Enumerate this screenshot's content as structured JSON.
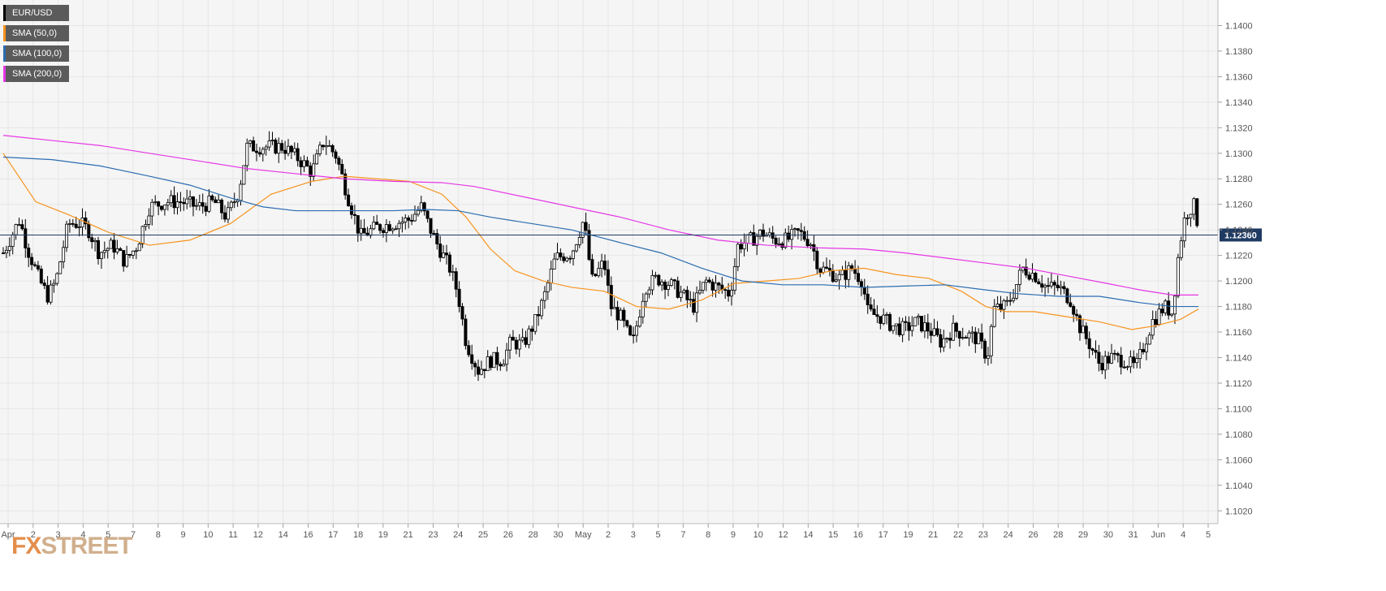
{
  "chart_data": {
    "type": "candlestick",
    "symbol": "EUR/USD",
    "current_price": "1.12360",
    "y_axis_labels": [
      "1.1400",
      "1.1380",
      "1.1360",
      "1.1340",
      "1.1320",
      "1.1300",
      "1.1280",
      "1.1260",
      "1.1240",
      "1.1220",
      "1.1200",
      "1.1180",
      "1.1160",
      "1.1140",
      "1.1120",
      "1.1100",
      "1.1080",
      "1.1060",
      "1.1040",
      "1.1020"
    ],
    "ylim": [
      1.101,
      1.142
    ],
    "x_axis_labels": [
      "Apr",
      "2",
      "3",
      "4",
      "5",
      "7",
      "8",
      "9",
      "10",
      "11",
      "12",
      "14",
      "16",
      "17",
      "18",
      "19",
      "21",
      "23",
      "24",
      "25",
      "26",
      "28",
      "30",
      "May",
      "2",
      "3",
      "5",
      "7",
      "8",
      "9",
      "10",
      "12",
      "14",
      "15",
      "16",
      "17",
      "19",
      "21",
      "22",
      "23",
      "24",
      "26",
      "28",
      "29",
      "30",
      "31",
      "Jun",
      "4",
      "5"
    ],
    "grid": true,
    "legend": [
      {
        "label": "EUR/USD",
        "color": "#000000"
      },
      {
        "label": "SMA (50,0)",
        "color": "#f7931e"
      },
      {
        "label": "SMA (100,0)",
        "color": "#2b6cb0"
      },
      {
        "label": "SMA (200,0)",
        "color": "#e637e6"
      }
    ],
    "price_path": [
      [
        0,
        1.1222
      ],
      [
        20,
        1.1248
      ],
      [
        30,
        1.1225
      ],
      [
        45,
        1.12
      ],
      [
        55,
        1.1188
      ],
      [
        65,
        1.12
      ],
      [
        80,
        1.1245
      ],
      [
        95,
        1.1245
      ],
      [
        105,
        1.124
      ],
      [
        118,
        1.1222
      ],
      [
        135,
        1.1228
      ],
      [
        150,
        1.1215
      ],
      [
        165,
        1.1228
      ],
      [
        180,
        1.1258
      ],
      [
        200,
        1.1262
      ],
      [
        220,
        1.1262
      ],
      [
        240,
        1.1258
      ],
      [
        260,
        1.1262
      ],
      [
        275,
        1.125
      ],
      [
        290,
        1.127
      ],
      [
        300,
        1.1305
      ],
      [
        320,
        1.1305
      ],
      [
        345,
        1.1305
      ],
      [
        365,
        1.1295
      ],
      [
        380,
        1.1285
      ],
      [
        395,
        1.131
      ],
      [
        410,
        1.1298
      ],
      [
        425,
        1.1265
      ],
      [
        440,
        1.1235
      ],
      [
        460,
        1.1242
      ],
      [
        480,
        1.1245
      ],
      [
        500,
        1.1248
      ],
      [
        515,
        1.1258
      ],
      [
        525,
        1.1242
      ],
      [
        535,
        1.1228
      ],
      [
        550,
        1.121
      ],
      [
        560,
        1.119
      ],
      [
        570,
        1.1152
      ],
      [
        585,
        1.113
      ],
      [
        600,
        1.1138
      ],
      [
        615,
        1.1138
      ],
      [
        625,
        1.1152
      ],
      [
        640,
        1.115
      ],
      [
        655,
        1.1168
      ],
      [
        665,
        1.1185
      ],
      [
        680,
        1.1218
      ],
      [
        700,
        1.1222
      ],
      [
        715,
        1.1248
      ],
      [
        725,
        1.12
      ],
      [
        740,
        1.1215
      ],
      [
        748,
        1.118
      ],
      [
        760,
        1.1172
      ],
      [
        775,
        1.115
      ],
      [
        790,
        1.1195
      ],
      [
        805,
        1.1202
      ],
      [
        820,
        1.1198
      ],
      [
        835,
        1.119
      ],
      [
        850,
        1.118
      ],
      [
        865,
        1.12
      ],
      [
        880,
        1.1195
      ],
      [
        895,
        1.119
      ],
      [
        905,
        1.1228
      ],
      [
        920,
        1.1232
      ],
      [
        935,
        1.1238
      ],
      [
        950,
        1.1232
      ],
      [
        965,
        1.1232
      ],
      [
        980,
        1.1238
      ],
      [
        995,
        1.123
      ],
      [
        1005,
        1.121
      ],
      [
        1015,
        1.1208
      ],
      [
        1030,
        1.1202
      ],
      [
        1045,
        1.121
      ],
      [
        1058,
        1.12
      ],
      [
        1065,
        1.1175
      ],
      [
        1080,
        1.1172
      ],
      [
        1095,
        1.1165
      ],
      [
        1110,
        1.1162
      ],
      [
        1125,
        1.1168
      ],
      [
        1140,
        1.1162
      ],
      [
        1155,
        1.1152
      ],
      [
        1170,
        1.1162
      ],
      [
        1185,
        1.1158
      ],
      [
        1200,
        1.1155
      ],
      [
        1212,
        1.114
      ],
      [
        1220,
        1.1178
      ],
      [
        1235,
        1.118
      ],
      [
        1245,
        1.1192
      ],
      [
        1255,
        1.121
      ],
      [
        1270,
        1.1205
      ],
      [
        1285,
        1.1195
      ],
      [
        1300,
        1.1195
      ],
      [
        1315,
        1.1185
      ],
      [
        1325,
        1.1165
      ],
      [
        1340,
        1.1148
      ],
      [
        1350,
        1.1135
      ],
      [
        1365,
        1.114
      ],
      [
        1380,
        1.1138
      ],
      [
        1395,
        1.1132
      ],
      [
        1405,
        1.115
      ],
      [
        1415,
        1.1168
      ],
      [
        1430,
        1.118
      ],
      [
        1440,
        1.1175
      ],
      [
        1448,
        1.1225
      ],
      [
        1456,
        1.1252
      ],
      [
        1466,
        1.126
      ],
      [
        1474,
        1.1236
      ]
    ],
    "sma_50": [
      [
        0,
        1.13
      ],
      [
        40,
        1.1262
      ],
      [
        80,
        1.1252
      ],
      [
        130,
        1.1238
      ],
      [
        180,
        1.1228
      ],
      [
        230,
        1.1232
      ],
      [
        280,
        1.1245
      ],
      [
        330,
        1.1268
      ],
      [
        380,
        1.1278
      ],
      [
        420,
        1.1282
      ],
      [
        460,
        1.128
      ],
      [
        500,
        1.1278
      ],
      [
        540,
        1.1268
      ],
      [
        570,
        1.125
      ],
      [
        600,
        1.1225
      ],
      [
        630,
        1.1208
      ],
      [
        665,
        1.12
      ],
      [
        700,
        1.1195
      ],
      [
        740,
        1.1192
      ],
      [
        780,
        1.118
      ],
      [
        820,
        1.1178
      ],
      [
        860,
        1.1185
      ],
      [
        900,
        1.1198
      ],
      [
        940,
        1.12
      ],
      [
        980,
        1.1202
      ],
      [
        1020,
        1.1208
      ],
      [
        1060,
        1.121
      ],
      [
        1100,
        1.1205
      ],
      [
        1140,
        1.1202
      ],
      [
        1180,
        1.1192
      ],
      [
        1210,
        1.118
      ],
      [
        1235,
        1.1176
      ],
      [
        1270,
        1.1176
      ],
      [
        1310,
        1.1172
      ],
      [
        1350,
        1.1168
      ],
      [
        1390,
        1.1162
      ],
      [
        1420,
        1.1165
      ],
      [
        1450,
        1.117
      ],
      [
        1472,
        1.1178
      ]
    ],
    "sma_100": [
      [
        0,
        1.1297
      ],
      [
        60,
        1.1295
      ],
      [
        120,
        1.129
      ],
      [
        180,
        1.1282
      ],
      [
        230,
        1.1275
      ],
      [
        280,
        1.1265
      ],
      [
        320,
        1.1258
      ],
      [
        360,
        1.1255
      ],
      [
        420,
        1.1255
      ],
      [
        480,
        1.1255
      ],
      [
        520,
        1.1256
      ],
      [
        560,
        1.1255
      ],
      [
        600,
        1.125
      ],
      [
        650,
        1.1245
      ],
      [
        700,
        1.124
      ],
      [
        760,
        1.123
      ],
      [
        810,
        1.1222
      ],
      [
        860,
        1.121
      ],
      [
        910,
        1.12
      ],
      [
        960,
        1.1197
      ],
      [
        1010,
        1.1197
      ],
      [
        1060,
        1.1195
      ],
      [
        1110,
        1.1196
      ],
      [
        1160,
        1.1197
      ],
      [
        1210,
        1.1193
      ],
      [
        1250,
        1.119
      ],
      [
        1300,
        1.1188
      ],
      [
        1350,
        1.1188
      ],
      [
        1400,
        1.1183
      ],
      [
        1440,
        1.118
      ],
      [
        1472,
        1.118
      ]
    ],
    "sma_200": [
      [
        0,
        1.1314
      ],
      [
        60,
        1.131
      ],
      [
        120,
        1.1306
      ],
      [
        180,
        1.13
      ],
      [
        240,
        1.1294
      ],
      [
        300,
        1.1288
      ],
      [
        360,
        1.1284
      ],
      [
        420,
        1.128
      ],
      [
        480,
        1.1278
      ],
      [
        540,
        1.1277
      ],
      [
        580,
        1.1274
      ],
      [
        640,
        1.1266
      ],
      [
        700,
        1.1258
      ],
      [
        760,
        1.125
      ],
      [
        820,
        1.124
      ],
      [
        880,
        1.1232
      ],
      [
        940,
        1.1228
      ],
      [
        1000,
        1.1226
      ],
      [
        1060,
        1.1225
      ],
      [
        1110,
        1.1222
      ],
      [
        1160,
        1.1218
      ],
      [
        1210,
        1.1214
      ],
      [
        1260,
        1.121
      ],
      [
        1310,
        1.1204
      ],
      [
        1360,
        1.1198
      ],
      [
        1400,
        1.1193
      ],
      [
        1440,
        1.1189
      ],
      [
        1472,
        1.1189
      ]
    ]
  },
  "watermark": {
    "prefix": "FX",
    "suffix": "STREET"
  },
  "colors": {
    "up_body": "#ffffff",
    "down_body": "#000000",
    "wick": "#000000",
    "grid": "#e6e6e6",
    "price_line": "#1f3b63",
    "price_badge": "#1f3b63"
  }
}
